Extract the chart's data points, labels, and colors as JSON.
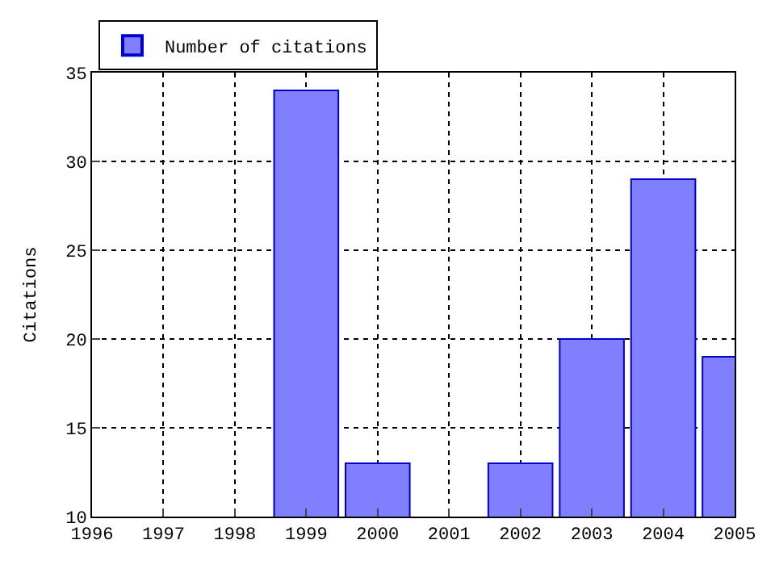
{
  "chart_data": {
    "type": "bar",
    "ylabel": "Citations",
    "x": [
      1999,
      2000,
      2002,
      2003,
      2004,
      2005
    ],
    "series": [
      {
        "name": "Number of citations",
        "color": "#8080ff",
        "values": [
          34,
          13,
          13,
          20,
          29,
          19
        ]
      }
    ],
    "xlim": [
      1996,
      2005
    ],
    "xticks": [
      1996,
      1997,
      1998,
      1999,
      2000,
      2001,
      2002,
      2003,
      2004,
      2005
    ],
    "ylim": [
      10,
      35
    ],
    "yticks": [
      10,
      15,
      20,
      25,
      30,
      35
    ],
    "grid": true,
    "legend": "top left"
  }
}
